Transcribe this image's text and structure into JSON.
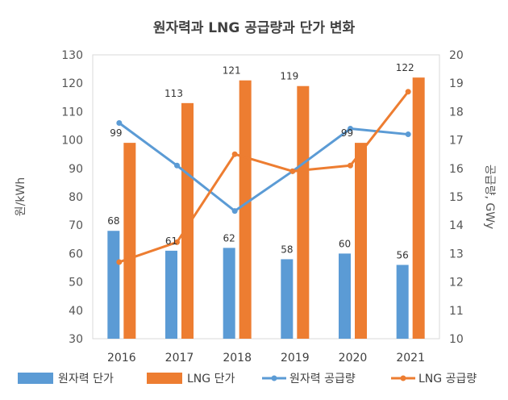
{
  "chart_data": {
    "type": "bar",
    "title": "원자력과 LNG 공급량과 단가 변화",
    "categories": [
      "2016",
      "2017",
      "2018",
      "2019",
      "2020",
      "2021"
    ],
    "ylabel": "원/kWh",
    "y2label": "공급량, GWy",
    "ylim": [
      30,
      130
    ],
    "y2lim": [
      10,
      20
    ],
    "yticks": [
      "30",
      "40",
      "50",
      "60",
      "70",
      "80",
      "90",
      "100",
      "110",
      "120",
      "130"
    ],
    "y2ticks": [
      "10",
      "11",
      "12",
      "13",
      "14",
      "15",
      "16",
      "17",
      "18",
      "19",
      "20"
    ],
    "grid": false,
    "legend_position": "bottom",
    "series": [
      {
        "name": "원자력 단가",
        "type": "bar",
        "axis": "left",
        "color": "#5b9bd5",
        "values": [
          68,
          61,
          62,
          58,
          60,
          56
        ],
        "labels": [
          "68",
          "61",
          "62",
          "58",
          "60",
          "56"
        ]
      },
      {
        "name": "LNG 단가",
        "type": "bar",
        "axis": "left",
        "color": "#ed7d31",
        "values": [
          99,
          113,
          121,
          119,
          99,
          122
        ],
        "labels": [
          "99",
          "113",
          "121",
          "119",
          "99",
          "122"
        ]
      },
      {
        "name": "원자력 공급량",
        "type": "line",
        "axis": "right",
        "color": "#5b9bd5",
        "values": [
          17.6,
          16.1,
          14.5,
          15.9,
          17.4,
          17.2
        ]
      },
      {
        "name": "LNG 공급량",
        "type": "line",
        "axis": "right",
        "color": "#ed7d31",
        "values": [
          12.7,
          13.4,
          16.5,
          15.9,
          16.1,
          18.7
        ]
      }
    ]
  }
}
